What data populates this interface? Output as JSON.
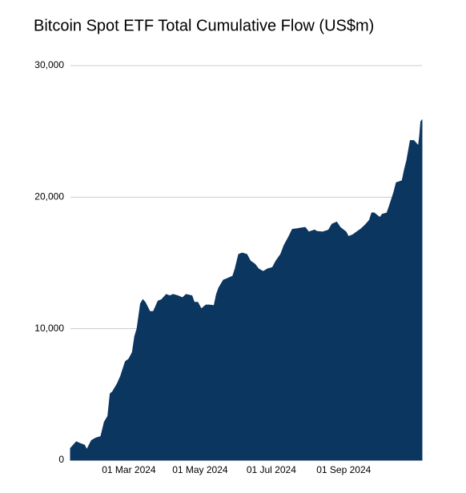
{
  "chart_data": {
    "type": "area",
    "title": "Bitcoin Spot ETF Total Cumulative Flow (US$m)",
    "color": "#0b3660",
    "grid": true,
    "ylim": [
      0,
      30000
    ],
    "yticks": [
      0,
      {
        "value": 10000,
        "label": "10,000"
      },
      {
        "value": 20000,
        "label": "20,000"
      },
      {
        "value": 30000,
        "label": "30,000"
      }
    ],
    "xlim": [
      "2024-01-11",
      "2024-11-07"
    ],
    "xticks": [
      {
        "value": "2024-03-01",
        "label": "01 Mar 2024"
      },
      {
        "value": "2024-05-01",
        "label": "01 May 2024"
      },
      {
        "value": "2024-07-01",
        "label": "01 Jul 2024"
      },
      {
        "value": "2024-09-01",
        "label": "01 Sep 2024"
      }
    ],
    "x": [
      "2024-01-11",
      "2024-01-16",
      "2024-01-19",
      "2024-01-23",
      "2024-01-25",
      "2024-01-29",
      "2024-02-02",
      "2024-02-06",
      "2024-02-09",
      "2024-02-12",
      "2024-02-14",
      "2024-02-16",
      "2024-02-20",
      "2024-02-23",
      "2024-02-27",
      "2024-03-01",
      "2024-03-04",
      "2024-03-06",
      "2024-03-08",
      "2024-03-11",
      "2024-03-13",
      "2024-03-15",
      "2024-03-19",
      "2024-03-22",
      "2024-03-26",
      "2024-03-29",
      "2024-04-02",
      "2024-04-05",
      "2024-04-08",
      "2024-04-12",
      "2024-04-16",
      "2024-04-19",
      "2024-04-24",
      "2024-04-26",
      "2024-04-29",
      "2024-05-02",
      "2024-05-06",
      "2024-05-09",
      "2024-05-13",
      "2024-05-15",
      "2024-05-17",
      "2024-05-21",
      "2024-05-24",
      "2024-05-29",
      "2024-05-31",
      "2024-06-03",
      "2024-06-06",
      "2024-06-10",
      "2024-06-13",
      "2024-06-17",
      "2024-06-20",
      "2024-06-24",
      "2024-06-28",
      "2024-07-02",
      "2024-07-05",
      "2024-07-09",
      "2024-07-12",
      "2024-07-16",
      "2024-07-19",
      "2024-07-23",
      "2024-07-26",
      "2024-07-30",
      "2024-08-02",
      "2024-08-07",
      "2024-08-09",
      "2024-08-14",
      "2024-08-19",
      "2024-08-22",
      "2024-08-26",
      "2024-08-29",
      "2024-09-03",
      "2024-09-05",
      "2024-09-09",
      "2024-09-12",
      "2024-09-16",
      "2024-09-19",
      "2024-09-23",
      "2024-09-25",
      "2024-09-27",
      "2024-10-02",
      "2024-10-04",
      "2024-10-08",
      "2024-10-10",
      "2024-10-14",
      "2024-10-16",
      "2024-10-21",
      "2024-10-23",
      "2024-10-25",
      "2024-10-28",
      "2024-10-31",
      "2024-11-04",
      "2024-11-05",
      "2024-11-06",
      "2024-11-07"
    ],
    "values": [
      900,
      1400,
      1280,
      1150,
      800,
      1500,
      1700,
      1800,
      2900,
      3350,
      5050,
      5200,
      5800,
      6400,
      7500,
      7700,
      8200,
      9400,
      10000,
      11900,
      12200,
      12000,
      11300,
      11300,
      12100,
      12200,
      12600,
      12500,
      12600,
      12500,
      12350,
      12600,
      12500,
      12000,
      12000,
      11500,
      11800,
      11800,
      11750,
      12600,
      13100,
      13700,
      13800,
      14000,
      14550,
      15650,
      15750,
      15650,
      15150,
      14900,
      14550,
      14350,
      14550,
      14650,
      15150,
      15650,
      16350,
      17000,
      17550,
      17600,
      17650,
      17700,
      17350,
      17500,
      17400,
      17350,
      17500,
      17950,
      18100,
      17700,
      17350,
      17000,
      17150,
      17350,
      17600,
      17850,
      18250,
      18800,
      18800,
      18450,
      18700,
      18800,
      19300,
      20400,
      21100,
      21250,
      22100,
      22800,
      24300,
      24300,
      23900,
      24650,
      25750,
      25850
    ]
  }
}
